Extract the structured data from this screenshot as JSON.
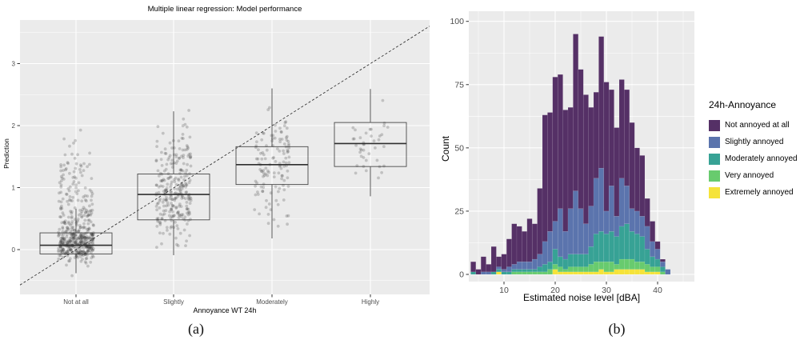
{
  "captions": {
    "a": "(a)",
    "b": "(b)"
  },
  "colors": {
    "panel_background": "#ebebeb",
    "gridline": "#ffffff",
    "axis_text": "#4d4d4d",
    "tick_mark": "#333333",
    "box_outline": "#4a4a4a",
    "point": "rgba(45,45,45,0.22)",
    "dashed_line": "#222222"
  },
  "chart_data": [
    {
      "type": "boxplot",
      "title": "Multiple linear regression: Model performance",
      "xlabel": "Annoyance WT 24h",
      "ylabel": "Prediction",
      "categories": [
        "Not at all",
        "Slightly",
        "Moderately",
        "Highly"
      ],
      "y_ticks": [
        0,
        1,
        2,
        3
      ],
      "ylim": [
        -0.72,
        3.7
      ],
      "grid": "major+minor",
      "identity_line": "dashed y=x reference through category centers at values 0,1,2,3",
      "groups": [
        {
          "label": "Not at all",
          "whisker_low": -0.38,
          "q1": -0.07,
          "median": 0.07,
          "q3": 0.27,
          "whisker_high": 0.66,
          "jitter": {
            "n": 480,
            "clip": [
              -0.44,
              2.02
            ],
            "mix": [
              {
                "w": 0.62,
                "mu": 0.07,
                "sd": 0.13
              },
              {
                "w": 0.28,
                "mu": 0.45,
                "sd": 0.3
              },
              {
                "w": 0.1,
                "mu": 1.2,
                "sd": 0.38
              }
            ]
          }
        },
        {
          "label": "Slightly",
          "whisker_low": -0.09,
          "q1": 0.48,
          "median": 0.89,
          "q3": 1.22,
          "whisker_high": 2.23,
          "jitter": {
            "n": 270,
            "clip": [
              -0.17,
              2.25
            ],
            "mix": [
              {
                "w": 0.75,
                "mu": 0.8,
                "sd": 0.33
              },
              {
                "w": 0.25,
                "mu": 1.45,
                "sd": 0.35
              }
            ]
          }
        },
        {
          "label": "Moderately",
          "whisker_low": 0.18,
          "q1": 1.05,
          "median": 1.37,
          "q3": 1.66,
          "whisker_high": 2.6,
          "jitter": {
            "n": 125,
            "clip": [
              0.2,
              2.62
            ],
            "mix": [
              {
                "w": 1.0,
                "mu": 1.35,
                "sd": 0.42
              }
            ]
          }
        },
        {
          "label": "Highly",
          "whisker_low": 0.86,
          "q1": 1.34,
          "median": 1.71,
          "q3": 2.05,
          "whisker_high": 2.59,
          "jitter": {
            "n": 40,
            "clip": [
              0.88,
              2.58
            ],
            "mix": [
              {
                "w": 1.0,
                "mu": 1.72,
                "sd": 0.4
              }
            ]
          }
        }
      ]
    },
    {
      "type": "bar",
      "stacked": true,
      "xlabel": "Estimated noise level [dBA]",
      "ylabel": "Count",
      "x_ticks": [
        10,
        20,
        30,
        40
      ],
      "y_ticks": [
        0,
        25,
        50,
        75,
        100
      ],
      "ylim": [
        0,
        107
      ],
      "xlim": [
        3,
        47
      ],
      "bin_width": 1,
      "legend_title": "24h-Annoyance",
      "legend_position": "right",
      "series_names": [
        "Not annoyed at all",
        "Slightly annoyed",
        "Moderately annoyed",
        "Very annoyed",
        "Extremely annoyed"
      ],
      "series_colors": [
        "#553066",
        "#5b74ad",
        "#37a295",
        "#68cb6e",
        "#f5e339"
      ],
      "bins_x": [
        4,
        5,
        6,
        7,
        8,
        9,
        10,
        11,
        12,
        13,
        14,
        15,
        16,
        17,
        18,
        19,
        20,
        21,
        22,
        23,
        24,
        25,
        26,
        27,
        28,
        29,
        30,
        31,
        32,
        33,
        34,
        35,
        36,
        37,
        38,
        39,
        40,
        41,
        42
      ],
      "stacks_order": "values per bin are [Not annoyed at all, Slightly annoyed, Moderately annoyed, Very annoyed, Extremely annoyed]; drawn bottom-up as yellow..purple on top of purple base? No: purple drawn topmost",
      "stacks": [
        [
          4,
          0,
          1,
          0,
          0
        ],
        [
          2,
          0,
          0,
          0,
          0
        ],
        [
          6,
          1,
          0,
          0,
          0
        ],
        [
          3,
          1,
          0,
          0,
          0
        ],
        [
          10,
          0,
          1,
          0,
          0
        ],
        [
          4,
          1,
          1,
          0,
          1
        ],
        [
          6,
          1,
          1,
          0,
          0
        ],
        [
          11,
          2,
          1,
          0,
          0
        ],
        [
          16,
          2,
          1,
          1,
          0
        ],
        [
          14,
          3,
          1,
          1,
          0
        ],
        [
          12,
          3,
          1,
          1,
          0
        ],
        [
          17,
          3,
          1,
          1,
          0
        ],
        [
          14,
          4,
          1,
          1,
          0
        ],
        [
          26,
          5,
          2,
          1,
          0
        ],
        [
          50,
          9,
          3,
          1,
          0
        ],
        [
          47,
          12,
          3,
          2,
          0
        ],
        [
          57,
          11,
          6,
          2,
          2
        ],
        [
          53,
          19,
          4,
          2,
          1
        ],
        [
          48,
          11,
          4,
          1,
          1
        ],
        [
          40,
          18,
          5,
          2,
          1
        ],
        [
          62,
          25,
          5,
          2,
          1
        ],
        [
          55,
          18,
          5,
          2,
          1
        ],
        [
          51,
          12,
          5,
          2,
          1
        ],
        [
          39,
          16,
          7,
          3,
          1
        ],
        [
          34,
          22,
          11,
          4,
          1
        ],
        [
          52,
          25,
          12,
          3,
          2
        ],
        [
          51,
          9,
          11,
          4,
          1
        ],
        [
          38,
          18,
          12,
          4,
          1
        ],
        [
          35,
          8,
          11,
          2,
          2
        ],
        [
          39,
          19,
          13,
          4,
          2
        ],
        [
          38,
          15,
          14,
          4,
          2
        ],
        [
          34,
          9,
          11,
          4,
          2
        ],
        [
          25,
          9,
          11,
          3,
          2
        ],
        [
          24,
          8,
          10,
          3,
          2
        ],
        [
          11,
          9,
          6,
          3,
          1
        ],
        [
          8,
          6,
          4,
          2,
          1
        ],
        [
          3,
          4,
          3,
          2,
          1
        ],
        [
          1,
          2,
          2,
          1,
          0
        ],
        [
          0,
          2,
          0,
          0,
          0
        ]
      ]
    }
  ]
}
